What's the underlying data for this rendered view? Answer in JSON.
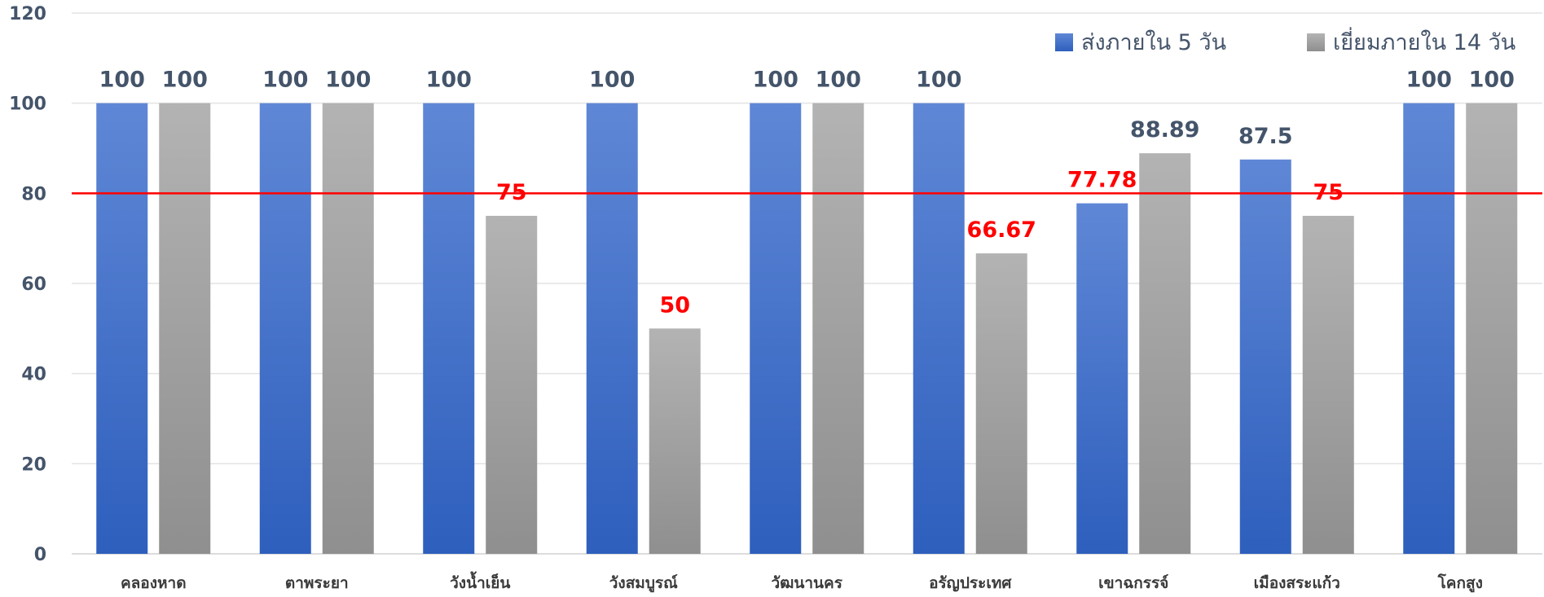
{
  "chart_data": {
    "type": "bar",
    "title": "",
    "xlabel": "",
    "ylabel": "",
    "ylim": [
      0,
      120
    ],
    "yticks": [
      0,
      20,
      40,
      60,
      80,
      100,
      120
    ],
    "grid": true,
    "legend_position": "top-right",
    "categories": [
      "คลองหาด",
      "ตาพระยา",
      "วังน้ำเย็น",
      "วังสมบูรณ์",
      "วัฒนานคร",
      "อรัญประเทศ",
      "เขาฉกรรจ์",
      "เมืองสระแก้ว",
      "โคกสูง"
    ],
    "series": [
      {
        "name": "ส่งภายใน 5 วัน",
        "color": "#4472c4",
        "values": [
          100,
          100,
          100,
          100,
          100,
          100,
          77.78,
          87.5,
          100
        ],
        "labels": [
          "100",
          "100",
          "100",
          "100",
          "100",
          "100",
          "77.78",
          "87.5",
          "100"
        ],
        "label_colors": [
          "#44546a",
          "#44546a",
          "#44546a",
          "#44546a",
          "#44546a",
          "#44546a",
          "#ff0000",
          "#44546a",
          "#44546a"
        ]
      },
      {
        "name": "เยี่ยมภายใน 14 วัน",
        "color": "#a5a5a5",
        "values": [
          100,
          100,
          75,
          50,
          100,
          66.67,
          88.89,
          75,
          100
        ],
        "labels": [
          "100",
          "100",
          "75",
          "50",
          "100",
          "66.67",
          "88.89",
          "75",
          "100"
        ],
        "label_colors": [
          "#44546a",
          "#44546a",
          "#ff0000",
          "#ff0000",
          "#44546a",
          "#ff0000",
          "#44546a",
          "#ff0000",
          "#44546a"
        ]
      }
    ],
    "reference_line": {
      "value": 80,
      "color": "#ff0000"
    }
  }
}
